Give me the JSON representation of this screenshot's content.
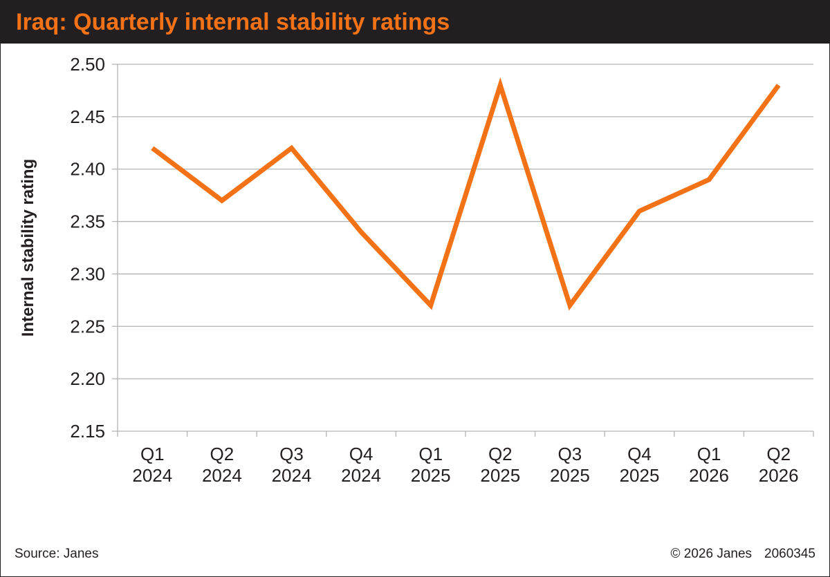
{
  "header": {
    "title": "Iraq: Quarterly internal stability ratings",
    "title_color": "#f47216",
    "bar_color": "#231f20"
  },
  "chart_data": {
    "type": "line",
    "title": "Iraq: Quarterly internal stability ratings",
    "xlabel": "",
    "ylabel": "Internal stability rating",
    "categories": [
      [
        "Q1",
        "2024"
      ],
      [
        "Q2",
        "2024"
      ],
      [
        "Q3",
        "2024"
      ],
      [
        "Q4",
        "2024"
      ],
      [
        "Q1",
        "2025"
      ],
      [
        "Q2",
        "2025"
      ],
      [
        "Q3",
        "2025"
      ],
      [
        "Q4",
        "2025"
      ],
      [
        "Q1",
        "2026"
      ],
      [
        "Q2",
        "2026"
      ]
    ],
    "series": [
      {
        "values": [
          2.42,
          2.37,
          2.42,
          2.34,
          2.27,
          2.48,
          2.27,
          2.36,
          2.39,
          2.48
        ],
        "color": "#f47216"
      }
    ],
    "ylim": [
      2.15,
      2.5
    ],
    "yticks": [
      "2.15",
      "2.20",
      "2.25",
      "2.30",
      "2.35",
      "2.40",
      "2.45",
      "2.50"
    ],
    "grid": true,
    "legend": "none"
  },
  "footer": {
    "source": "Source: Janes",
    "copyright": "© 2026 Janes",
    "id": "2060345"
  }
}
